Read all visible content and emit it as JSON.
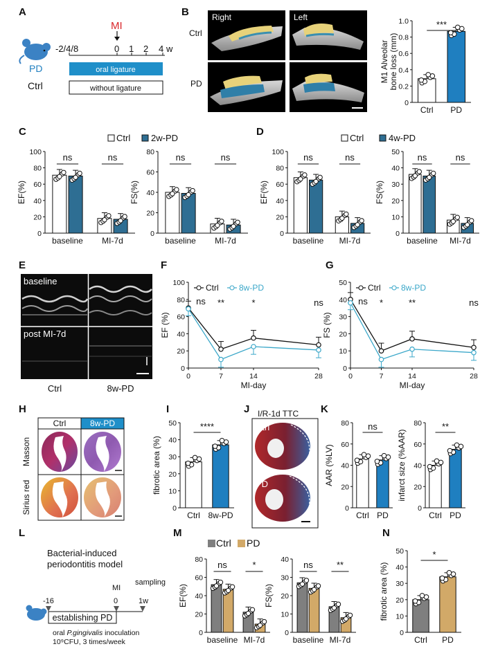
{
  "colors": {
    "blue": "#1f7fc0",
    "steel": "#2e6e93",
    "cyan": "#3aa7c9",
    "gray": "#7f7f7f",
    "tan": "#d2a968",
    "red": "#d9262a",
    "black": "#111111",
    "white": "#ffffff"
  },
  "icons": {
    "mouse": "mouse-icon",
    "arrow": "down-arrow-icon",
    "triangle": "triangle-marker-icon",
    "scalebar": "scale-bar-icon"
  },
  "panel_labels": [
    "A",
    "B",
    "C",
    "D",
    "E",
    "F",
    "G",
    "H",
    "I",
    "J",
    "K",
    "L",
    "M",
    "N"
  ],
  "panelA": {
    "mi": "MI",
    "ticks": [
      "-2/4/8",
      "0",
      "1",
      "2",
      "4"
    ],
    "unit": "w",
    "group_pd": "PD",
    "group_ctrl": "Ctrl",
    "bar_pd": "oral ligature",
    "bar_ctrl": "without ligature"
  },
  "panelB": {
    "col_right": "Right",
    "col_left": "Left",
    "row_ctrl": "Ctrl",
    "row_pd": "PD"
  },
  "panelE": {
    "top": "baseline",
    "bottom": "post MI-7d",
    "x_ctrl": "Ctrl",
    "x_pd": "8w-PD"
  },
  "panelH": {
    "col_ctrl": "Ctrl",
    "col_pd": "8w-PD",
    "row1": "Masson",
    "row2": "Sirius red"
  },
  "panelJ": {
    "title": "I/R-1d TTC",
    "row1": "Ctrl",
    "row2": "PD"
  },
  "panelL": {
    "title1": "Bacterial-induced",
    "title2": "periodontitis model",
    "mi": "MI",
    "sampling": "sampling",
    "t_minus16": "-16",
    "t0": "0",
    "t1w": "1w",
    "box": "establishing PD",
    "note_pre": "oral ",
    "note_species": "P.gingivalis",
    "note_post": " inoculation",
    "note2": "10⁹CFU, 3 times/week"
  },
  "legendC": {
    "ctrl": "Ctrl",
    "pd": "2w-PD"
  },
  "legendD": {
    "ctrl": "Ctrl",
    "pd": "4w-PD"
  },
  "legendM": {
    "ctrl": "Ctrl",
    "pd": "PD"
  },
  "chart_data": [
    {
      "id": "B_bar",
      "type": "bar",
      "ylabel": "M1 Alveolar\nbone loss (mm)",
      "ylim": [
        0,
        1.0
      ],
      "yticks": [
        "0",
        "0.2",
        "0.4",
        "0.6",
        "0.8",
        "1.0"
      ],
      "categories": [
        "Ctrl",
        "PD"
      ],
      "values": [
        0.29,
        0.87
      ],
      "sig": [
        "***"
      ]
    },
    {
      "id": "C_EF",
      "type": "bar",
      "ylabel": "EF(%)",
      "ylim": [
        0,
        100
      ],
      "yticks": [
        "0",
        "20",
        "40",
        "60",
        "80",
        "100"
      ],
      "categories": [
        "baseline",
        "MI-7d"
      ],
      "series": [
        {
          "name": "Ctrl",
          "values": [
            71,
            18
          ]
        },
        {
          "name": "2w-PD",
          "values": [
            70,
            17
          ]
        }
      ],
      "sig": [
        "ns",
        "ns"
      ]
    },
    {
      "id": "C_FS",
      "type": "bar",
      "ylabel": "FS(%)",
      "ylim": [
        0,
        80
      ],
      "yticks": [
        "0",
        "20",
        "40",
        "60",
        "80"
      ],
      "categories": [
        "baseline",
        "MI-7d"
      ],
      "series": [
        {
          "name": "Ctrl",
          "values": [
            40,
            9
          ]
        },
        {
          "name": "2w-PD",
          "values": [
            39,
            8
          ]
        }
      ],
      "sig": [
        "ns",
        "ns"
      ]
    },
    {
      "id": "D_EF",
      "type": "bar",
      "ylabel": "EF(%)",
      "ylim": [
        0,
        100
      ],
      "yticks": [
        "0",
        "20",
        "40",
        "60",
        "80",
        "100"
      ],
      "categories": [
        "baseline",
        "MI-7d"
      ],
      "series": [
        {
          "name": "Ctrl",
          "values": [
            68,
            20
          ]
        },
        {
          "name": "4w-PD",
          "values": [
            65,
            12
          ]
        }
      ],
      "sig": [
        "ns",
        "ns"
      ]
    },
    {
      "id": "D_FS",
      "type": "bar",
      "ylabel": "FS(%)",
      "ylim": [
        0,
        50
      ],
      "yticks": [
        "0",
        "10",
        "20",
        "30",
        "40",
        "50"
      ],
      "categories": [
        "baseline",
        "MI-7d"
      ],
      "series": [
        {
          "name": "Ctrl",
          "values": [
            36,
            8
          ]
        },
        {
          "name": "4w-PD",
          "values": [
            35,
            6
          ]
        }
      ],
      "sig": [
        "ns",
        "ns"
      ]
    },
    {
      "id": "F_line",
      "type": "line",
      "ylabel": "EF (%)",
      "xlabel": "MI-day",
      "ylim": [
        0,
        100
      ],
      "yticks": [
        "0",
        "20",
        "40",
        "60",
        "80",
        "100"
      ],
      "x": [
        0,
        7,
        14,
        28
      ],
      "xticks": [
        "0",
        "7",
        "14",
        "28"
      ],
      "series": [
        {
          "name": "Ctrl",
          "values": [
            70,
            22,
            35,
            27
          ]
        },
        {
          "name": "8w-PD",
          "values": [
            69,
            10,
            25,
            21
          ]
        }
      ],
      "sig": [
        "ns",
        "**",
        "*",
        "ns"
      ]
    },
    {
      "id": "G_line",
      "type": "line",
      "ylabel": "FS (%)",
      "xlabel": "MI-day",
      "ylim": [
        0,
        50
      ],
      "yticks": [
        "0",
        "10",
        "20",
        "30",
        "40",
        "50"
      ],
      "x": [
        0,
        7,
        14,
        28
      ],
      "xticks": [
        "0",
        "7",
        "14",
        "28"
      ],
      "series": [
        {
          "name": "Ctrl",
          "values": [
            40,
            10,
            17,
            12
          ]
        },
        {
          "name": "8w-PD",
          "values": [
            38,
            5,
            11,
            9
          ]
        }
      ],
      "sig": [
        "ns",
        "*",
        "**",
        "ns"
      ]
    },
    {
      "id": "I_bar",
      "type": "bar",
      "ylabel": "fibrotic area (%)",
      "ylim": [
        0,
        50
      ],
      "yticks": [
        "0",
        "10",
        "20",
        "30",
        "40",
        "50"
      ],
      "categories": [
        "Ctrl",
        "8w-PD"
      ],
      "values": [
        27,
        37
      ],
      "sig": [
        "****"
      ]
    },
    {
      "id": "K_AAR",
      "type": "bar",
      "ylabel": "AAR (%LV)",
      "ylim": [
        0,
        80
      ],
      "yticks": [
        "0",
        "20",
        "40",
        "60",
        "80"
      ],
      "categories": [
        "Ctrl",
        "PD"
      ],
      "values": [
        46,
        45
      ],
      "sig": [
        "ns"
      ]
    },
    {
      "id": "K_inf",
      "type": "bar",
      "ylabel": "infarct size (%AAR)",
      "ylim": [
        0,
        80
      ],
      "yticks": [
        "0",
        "20",
        "40",
        "60",
        "80"
      ],
      "categories": [
        "Ctrl",
        "PD"
      ],
      "values": [
        40,
        55
      ],
      "sig": [
        "**"
      ]
    },
    {
      "id": "M_EF",
      "type": "bar",
      "ylabel": "EF(%)",
      "ylim": [
        0,
        80
      ],
      "yticks": [
        "0",
        "20",
        "40",
        "60",
        "80"
      ],
      "categories": [
        "baseline",
        "MI-7d"
      ],
      "series": [
        {
          "name": "Ctrl",
          "values": [
            52,
            22
          ]
        },
        {
          "name": "PD",
          "values": [
            47,
            9
          ]
        }
      ],
      "sig": [
        "ns",
        "*"
      ]
    },
    {
      "id": "M_FS",
      "type": "bar",
      "ylabel": "FS(%)",
      "ylim": [
        0,
        40
      ],
      "yticks": [
        "0",
        "10",
        "20",
        "30",
        "40"
      ],
      "categories": [
        "baseline",
        "MI-7d"
      ],
      "series": [
        {
          "name": "Ctrl",
          "values": [
            27,
            14
          ]
        },
        {
          "name": "PD",
          "values": [
            24,
            8
          ]
        }
      ],
      "sig": [
        "ns",
        "**"
      ]
    },
    {
      "id": "N_bar",
      "type": "bar",
      "ylabel": "fibrotic area (%)",
      "ylim": [
        0,
        50
      ],
      "yticks": [
        "0",
        "10",
        "20",
        "30",
        "40",
        "50"
      ],
      "categories": [
        "Ctrl",
        "PD"
      ],
      "values": [
        20,
        34
      ],
      "sig": [
        "*"
      ]
    }
  ]
}
